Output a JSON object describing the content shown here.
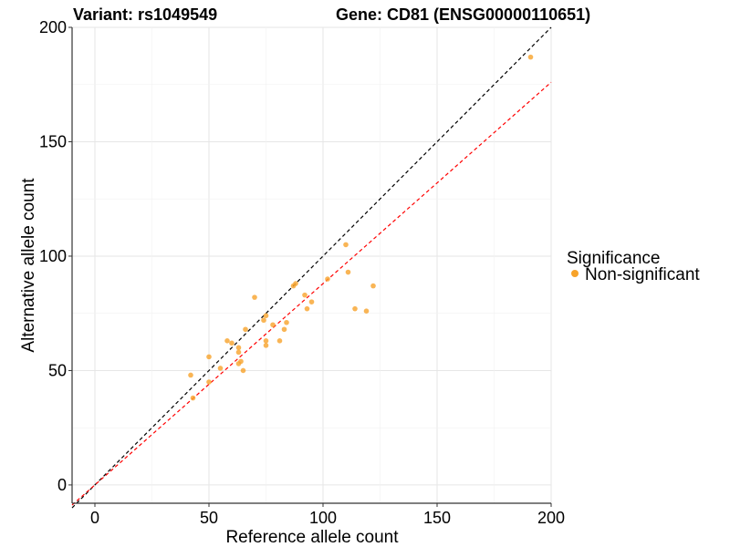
{
  "chart_data": {
    "type": "scatter",
    "title_left": "Variant: rs1049549",
    "title_right": "Gene: CD81 (ENSG00000110651)",
    "xlabel": "Reference allele count",
    "ylabel": "Alternative allele count",
    "xlim": [
      -10,
      200
    ],
    "ylim": [
      -8,
      200
    ],
    "x_ticks": [
      0,
      50,
      100,
      150,
      200
    ],
    "y_ticks": [
      0,
      50,
      100,
      150,
      200
    ],
    "grid": true,
    "legend": {
      "title": "Significance",
      "placement": "right",
      "entries": [
        {
          "label": "Non-significant",
          "color": "#F7A32A"
        }
      ]
    },
    "point_color": "#F7A32A",
    "reference_lines": [
      {
        "style": "dashed",
        "color": "#000000",
        "slope": 1.0,
        "intercept": 0
      },
      {
        "style": "dashed",
        "color": "#FF0000",
        "slope": 0.88,
        "intercept": 0
      }
    ],
    "series": [
      {
        "name": "Non-significant",
        "points": [
          {
            "x": 42,
            "y": 48
          },
          {
            "x": 43,
            "y": 38
          },
          {
            "x": 50,
            "y": 56
          },
          {
            "x": 50,
            "y": 45
          },
          {
            "x": 55,
            "y": 51
          },
          {
            "x": 58,
            "y": 63
          },
          {
            "x": 60,
            "y": 62
          },
          {
            "x": 63,
            "y": 60
          },
          {
            "x": 63,
            "y": 58
          },
          {
            "x": 63,
            "y": 53
          },
          {
            "x": 64,
            "y": 54
          },
          {
            "x": 65,
            "y": 50
          },
          {
            "x": 66,
            "y": 68
          },
          {
            "x": 70,
            "y": 82
          },
          {
            "x": 74,
            "y": 72
          },
          {
            "x": 75,
            "y": 74
          },
          {
            "x": 75,
            "y": 63
          },
          {
            "x": 75,
            "y": 61
          },
          {
            "x": 78,
            "y": 70
          },
          {
            "x": 81,
            "y": 63
          },
          {
            "x": 83,
            "y": 68
          },
          {
            "x": 84,
            "y": 71
          },
          {
            "x": 87,
            "y": 87
          },
          {
            "x": 88,
            "y": 88
          },
          {
            "x": 92,
            "y": 83
          },
          {
            "x": 93,
            "y": 77
          },
          {
            "x": 95,
            "y": 80
          },
          {
            "x": 102,
            "y": 90
          },
          {
            "x": 110,
            "y": 105
          },
          {
            "x": 111,
            "y": 93
          },
          {
            "x": 114,
            "y": 77
          },
          {
            "x": 119,
            "y": 76
          },
          {
            "x": 122,
            "y": 87
          },
          {
            "x": 191,
            "y": 187
          }
        ]
      }
    ]
  }
}
